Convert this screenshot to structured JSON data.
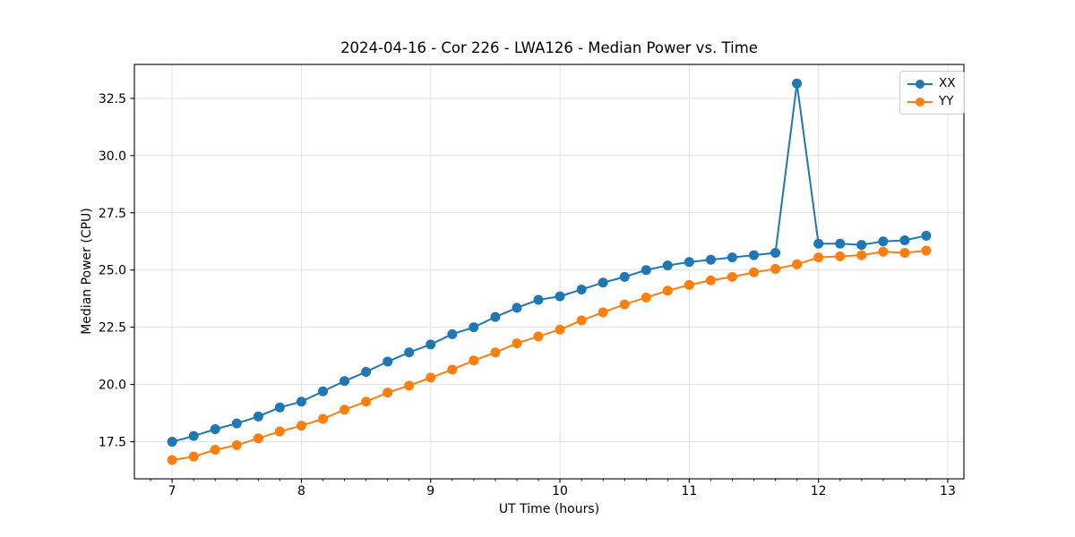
{
  "figure": {
    "background": "#ffffff"
  },
  "chart_data": {
    "type": "line",
    "title": "2024-04-16 - Cor 226 - LWA126 - Median Power vs. Time",
    "xlabel": "UT Time (hours)",
    "ylabel": "Median Power (CPU)",
    "xlim": [
      6.708,
      13.125
    ],
    "ylim": [
      15.88,
      33.98
    ],
    "xticks": [
      7,
      8,
      9,
      10,
      11,
      12,
      13
    ],
    "yticks": [
      17.5,
      20.0,
      22.5,
      25.0,
      27.5,
      30.0,
      32.5
    ],
    "minor_xtick_step": 0.1667,
    "grid": true,
    "grid_color": "#e2e2e2",
    "spine_color": "#000000",
    "legend_position": "upper right",
    "x": [
      7.0,
      7.167,
      7.333,
      7.5,
      7.667,
      7.833,
      8.0,
      8.167,
      8.333,
      8.5,
      8.667,
      8.833,
      9.0,
      9.167,
      9.333,
      9.5,
      9.667,
      9.833,
      10.0,
      10.167,
      10.333,
      10.5,
      10.667,
      10.833,
      11.0,
      11.167,
      11.333,
      11.5,
      11.667,
      11.833,
      12.0,
      12.167,
      12.333,
      12.5,
      12.667,
      12.833
    ],
    "series": [
      {
        "name": "XX",
        "color": "#1f77b4",
        "values": [
          17.5,
          17.75,
          18.05,
          18.3,
          18.6,
          19.0,
          19.25,
          19.7,
          20.15,
          20.55,
          21.0,
          21.4,
          21.75,
          22.2,
          22.5,
          22.95,
          23.35,
          23.7,
          23.85,
          24.15,
          24.45,
          24.7,
          25.0,
          25.2,
          25.35,
          25.45,
          25.55,
          25.65,
          25.75,
          33.15,
          26.15,
          26.15,
          26.1,
          26.25,
          26.3,
          26.5
        ]
      },
      {
        "name": "YY",
        "color": "#ff7f0e",
        "values": [
          16.7,
          16.85,
          17.15,
          17.35,
          17.65,
          17.95,
          18.2,
          18.5,
          18.9,
          19.25,
          19.65,
          19.95,
          20.3,
          20.65,
          21.05,
          21.4,
          21.8,
          22.1,
          22.4,
          22.8,
          23.15,
          23.5,
          23.8,
          24.1,
          24.35,
          24.55,
          24.7,
          24.9,
          25.05,
          25.25,
          25.55,
          25.6,
          25.65,
          25.8,
          25.75,
          25.85
        ]
      }
    ]
  }
}
